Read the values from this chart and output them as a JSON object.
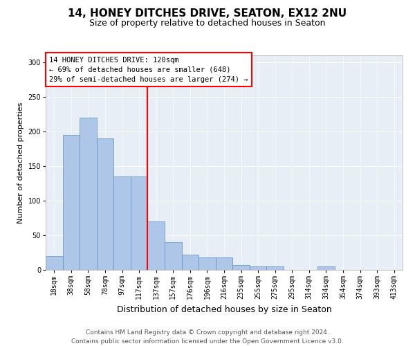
{
  "title": "14, HONEY DITCHES DRIVE, SEATON, EX12 2NU",
  "subtitle": "Size of property relative to detached houses in Seaton",
  "xlabel": "Distribution of detached houses by size in Seaton",
  "ylabel": "Number of detached properties",
  "categories": [
    "18sqm",
    "38sqm",
    "58sqm",
    "78sqm",
    "97sqm",
    "117sqm",
    "137sqm",
    "157sqm",
    "176sqm",
    "196sqm",
    "216sqm",
    "235sqm",
    "255sqm",
    "275sqm",
    "295sqm",
    "314sqm",
    "334sqm",
    "354sqm",
    "374sqm",
    "393sqm",
    "413sqm"
  ],
  "values": [
    20,
    195,
    220,
    190,
    135,
    135,
    70,
    40,
    22,
    18,
    18,
    7,
    5,
    5,
    0,
    0,
    5,
    0,
    0,
    0,
    0
  ],
  "bar_color": "#aec6e8",
  "bar_edge_color": "#5a8fc0",
  "vline_x": 5.5,
  "vline_color": "red",
  "annotation_text": "14 HONEY DITCHES DRIVE: 120sqm\n← 69% of detached houses are smaller (648)\n29% of semi-detached houses are larger (274) →",
  "annotation_box_color": "white",
  "annotation_box_edge_color": "red",
  "ylim": [
    0,
    310
  ],
  "yticks": [
    0,
    50,
    100,
    150,
    200,
    250,
    300
  ],
  "background_color": "#e8eef5",
  "footer_line1": "Contains HM Land Registry data © Crown copyright and database right 2024.",
  "footer_line2": "Contains public sector information licensed under the Open Government Licence v3.0.",
  "title_fontsize": 11,
  "subtitle_fontsize": 9,
  "xlabel_fontsize": 9,
  "ylabel_fontsize": 8,
  "tick_fontsize": 7,
  "annotation_fontsize": 7.5,
  "footer_fontsize": 6.5
}
